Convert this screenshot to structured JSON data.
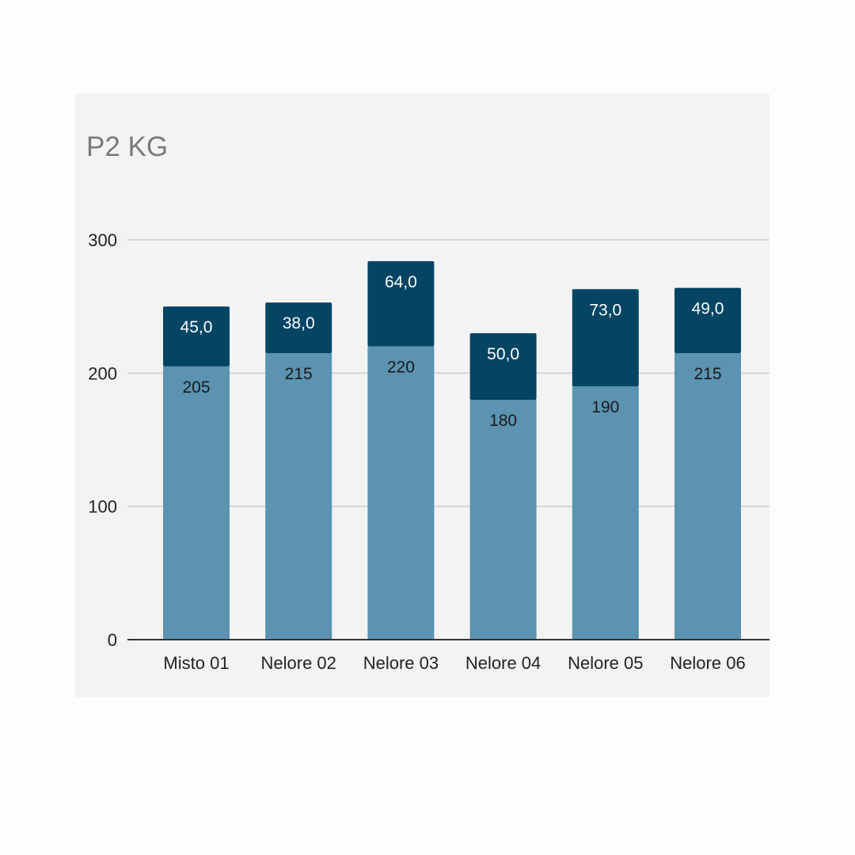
{
  "chart_data": {
    "type": "bar",
    "stacked": true,
    "title": "P2 KG",
    "xlabel": "",
    "ylabel": "",
    "ylim": [
      0,
      300
    ],
    "yticks": [
      "0",
      "100",
      "200",
      "300"
    ],
    "grid": true,
    "legend": "none",
    "categories": [
      "Misto 01",
      "Nelore 02",
      "Nelore 03",
      "Nelore 04",
      "Nelore 05",
      "Nelore 06"
    ],
    "series": [
      {
        "values": [
          205,
          215,
          220,
          180,
          190,
          215
        ],
        "labels": [
          "205",
          "215",
          "220",
          "180",
          "190",
          "215"
        ],
        "color": "#5b93b1"
      },
      {
        "values": [
          45,
          38,
          64,
          50,
          73,
          49
        ],
        "labels": [
          "45,0",
          "38,0",
          "64,0",
          "50,0",
          "73,0",
          "49,0"
        ],
        "color": "#044564"
      }
    ]
  }
}
